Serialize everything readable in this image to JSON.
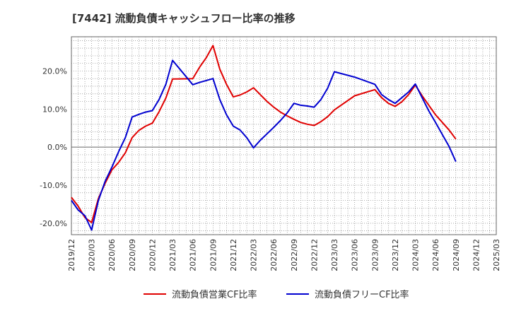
{
  "chart_data": {
    "type": "line",
    "title": "[7442]  流動負債キャッシュフロー比率の推移",
    "xlabel": "",
    "ylabel": "",
    "ylim": [
      -23,
      29
    ],
    "yticks": [
      -20,
      -10,
      0,
      10,
      20
    ],
    "ytick_labels": [
      "-20.0%",
      "-10.0%",
      "0.0%",
      "10.0%",
      "20.0%"
    ],
    "xtick_labels": [
      "2019/12",
      "2020/03",
      "2020/06",
      "2020/09",
      "2020/12",
      "2021/03",
      "2021/06",
      "2021/09",
      "2021/12",
      "2022/03",
      "2022/06",
      "2022/09",
      "2022/12",
      "2023/03",
      "2023/06",
      "2023/09",
      "2023/12",
      "2024/03",
      "2024/06",
      "2024/09",
      "2024/12",
      "2025/03"
    ],
    "grid": true,
    "legend_position": "bottom",
    "x": [
      "2019/12",
      "2020/01",
      "2020/02",
      "2020/03",
      "2020/04",
      "2020/05",
      "2020/06",
      "2020/07",
      "2020/08",
      "2020/09",
      "2020/10",
      "2020/11",
      "2020/12",
      "2021/01",
      "2021/02",
      "2021/03",
      "2021/06",
      "2021/07",
      "2021/08",
      "2021/09",
      "2021/10",
      "2021/11",
      "2021/12",
      "2022/01",
      "2022/02",
      "2022/03",
      "2022/04",
      "2022/05",
      "2022/06",
      "2022/07",
      "2022/08",
      "2022/09",
      "2022/10",
      "2022/11",
      "2022/12",
      "2023/01",
      "2023/02",
      "2023/03",
      "2023/06",
      "2023/09",
      "2023/10",
      "2023/11",
      "2023/12",
      "2024/01",
      "2024/02",
      "2024/03",
      "2024/04",
      "2024/05",
      "2024/06",
      "2024/07",
      "2024/08",
      "2024/09"
    ],
    "series": [
      {
        "name": "流動負債営業CF比率",
        "color": "#e00000",
        "values": [
          -13.2,
          -15.5,
          -18.5,
          -19.8,
          -13.5,
          -9.5,
          -6.0,
          -4.0,
          -1.5,
          2.5,
          4.4,
          5.5,
          6.3,
          9.3,
          12.9,
          17.9,
          18.0,
          21.0,
          23.5,
          26.7,
          20.5,
          16.5,
          13.2,
          13.7,
          14.5,
          15.6,
          13.8,
          12.0,
          10.5,
          9.2,
          8.2,
          7.3,
          6.5,
          6.0,
          5.7,
          6.7,
          8.0,
          9.8,
          13.5,
          15.1,
          13.0,
          11.5,
          10.7,
          11.9,
          13.8,
          16.3,
          13.5,
          11.0,
          8.5,
          6.5,
          4.5,
          2.1
        ]
      },
      {
        "name": "流動負債フリーCF比率",
        "color": "#0000d0",
        "values": [
          -14.0,
          -16.5,
          -18.0,
          -21.8,
          -14.0,
          -9.0,
          -5.3,
          -1.2,
          2.5,
          7.9,
          8.6,
          9.2,
          9.6,
          12.5,
          16.5,
          22.8,
          16.4,
          17.0,
          17.5,
          18.0,
          12.5,
          8.5,
          5.5,
          4.5,
          2.5,
          -0.2,
          1.8,
          3.5,
          5.2,
          7.0,
          9.0,
          11.5,
          11.0,
          10.8,
          10.5,
          12.5,
          15.5,
          19.8,
          18.4,
          16.5,
          13.8,
          12.5,
          11.5,
          13.0,
          14.5,
          16.6,
          13.0,
          9.5,
          6.5,
          3.3,
          0.2,
          -3.8
        ]
      }
    ]
  }
}
